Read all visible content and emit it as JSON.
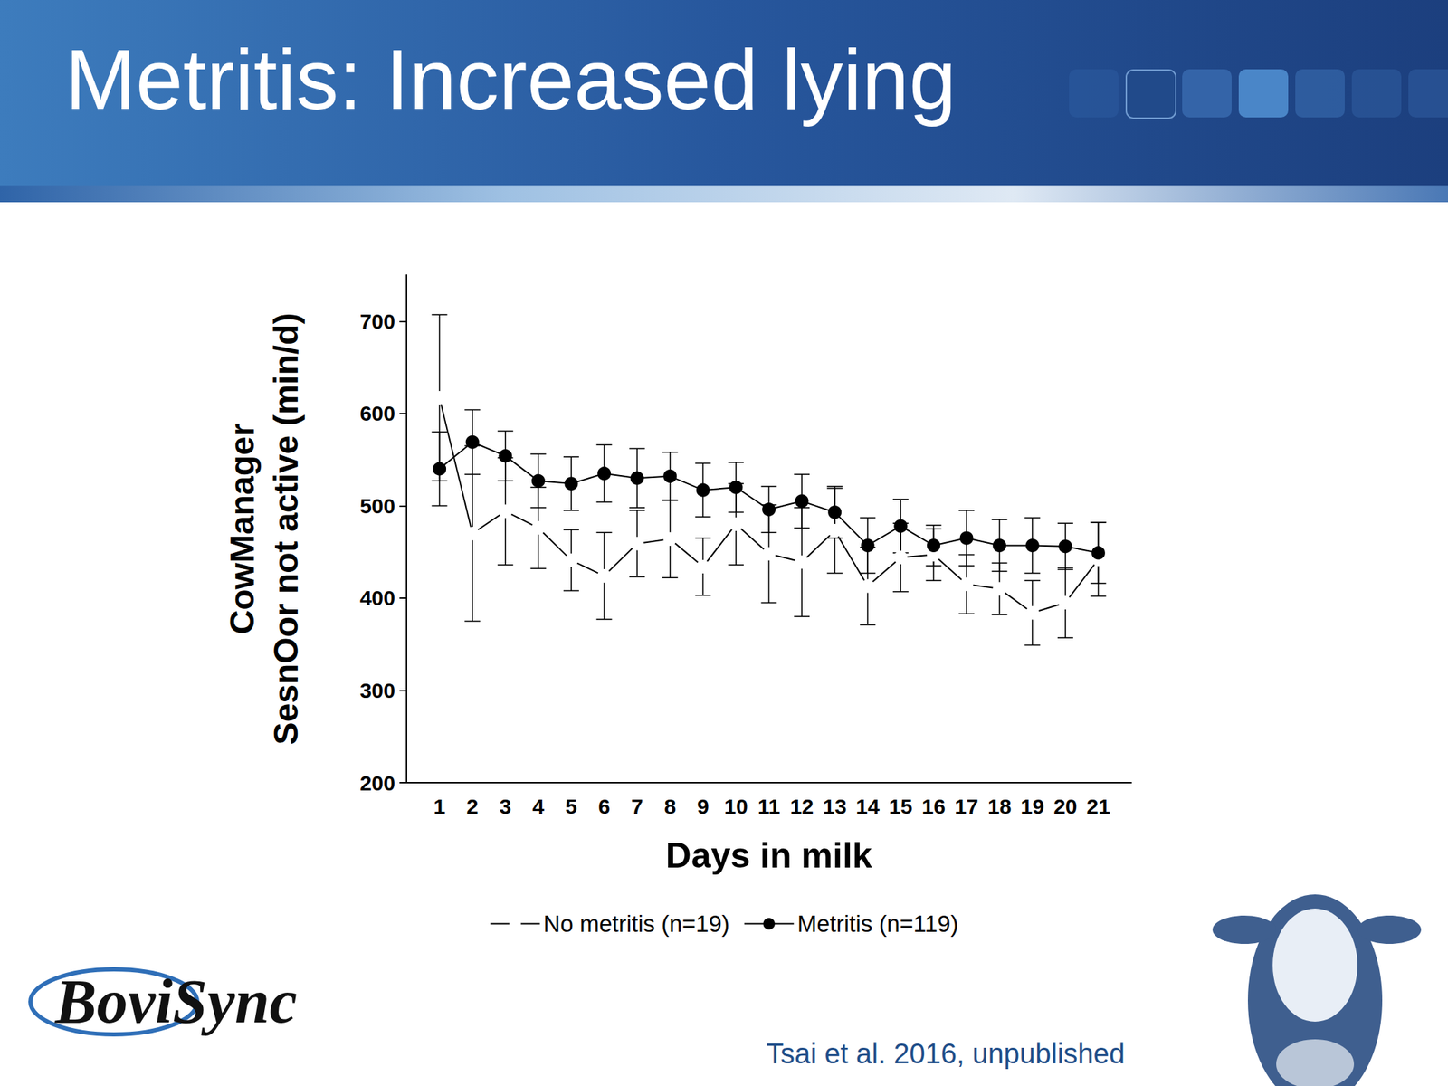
{
  "chart_data": {
    "type": "line",
    "title": "Metritis: Increased lying",
    "xlabel": "Days in milk",
    "ylabel": "CowManager\nSesnOor not active (min/d)",
    "x": [
      1,
      2,
      3,
      4,
      5,
      6,
      7,
      8,
      9,
      10,
      11,
      12,
      13,
      14,
      15,
      16,
      17,
      18,
      19,
      20,
      21
    ],
    "xlim": [
      0,
      22
    ],
    "xticks": [
      1,
      2,
      3,
      4,
      5,
      6,
      7,
      8,
      9,
      10,
      11,
      12,
      13,
      14,
      15,
      16,
      17,
      18,
      19,
      20,
      21
    ],
    "ylim": [
      200,
      750
    ],
    "yticks": [
      200,
      300,
      400,
      500,
      600,
      700
    ],
    "grid": false,
    "legend": "bottom",
    "series": [
      {
        "name": "No metritis (n=19)",
        "color": "#000000",
        "marker": "emptyCircle",
        "line_style": "solid",
        "values": [
          617,
          470,
          494,
          476,
          441,
          424,
          459,
          464,
          434,
          480,
          448,
          439,
          473,
          413,
          444,
          447,
          415,
          410,
          384,
          395,
          442
        ],
        "errors": [
          90,
          95,
          58,
          44,
          33,
          47,
          36,
          42,
          31,
          44,
          53,
          59,
          46,
          42,
          37,
          28,
          32,
          28,
          35,
          38,
          40
        ]
      },
      {
        "name": "Metritis (n=119)",
        "color": "#000000",
        "marker": "circle",
        "line_style": "solid",
        "values": [
          540,
          569,
          554,
          527,
          524,
          535,
          530,
          532,
          517,
          520,
          496,
          505,
          493,
          457,
          478,
          457,
          465,
          457,
          457,
          456,
          449
        ],
        "errors": [
          40,
          35,
          27,
          29,
          29,
          31,
          32,
          26,
          29,
          27,
          25,
          29,
          28,
          30,
          29,
          22,
          30,
          28,
          30,
          25,
          33
        ]
      }
    ],
    "annotations": [
      "BoviSync"
    ],
    "source": "Tsai et al. 2016, unpublished"
  }
}
